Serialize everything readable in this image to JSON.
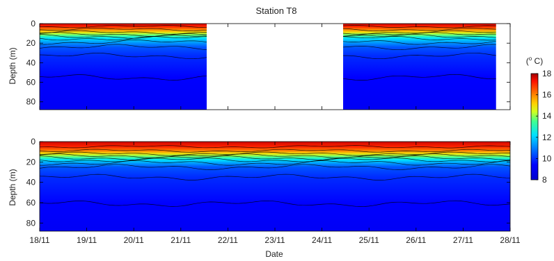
{
  "chart_data": {
    "type": "heatmap",
    "title": "Station T8",
    "xlabel": "Date",
    "ylabel": "Depth (m)",
    "x_ticks": [
      "18/11",
      "19/11",
      "20/11",
      "21/11",
      "22/11",
      "23/11",
      "24/11",
      "25/11",
      "26/11",
      "27/11",
      "28/11"
    ],
    "xlim_days": [
      18,
      28
    ],
    "y_ticks": [
      0,
      20,
      40,
      60,
      80
    ],
    "ylim": [
      0,
      88
    ],
    "y_reversed": true,
    "colorbar": {
      "label": "(° C)",
      "ticks": [
        8,
        10,
        12,
        14,
        16,
        18
      ],
      "range": [
        8,
        18
      ],
      "colormap": "jet"
    },
    "panels": [
      {
        "name": "top",
        "data_gap_days": [
          21.55,
          24.45
        ],
        "isotherm_depths_m": [
          {
            "temp": 17,
            "depth": 3
          },
          {
            "temp": 16,
            "depth": 6
          },
          {
            "temp": 15,
            "depth": 9
          },
          {
            "temp": 14,
            "depth": 11
          },
          {
            "temp": 13,
            "depth": 13
          },
          {
            "temp": 12,
            "depth": 15
          },
          {
            "temp": 11,
            "depth": 19
          },
          {
            "temp": 10,
            "depth": 24
          },
          {
            "temp": 9.5,
            "depth": 33
          },
          {
            "temp": 9,
            "depth": 55
          }
        ]
      },
      {
        "name": "bottom",
        "data_gap_days": null,
        "isotherm_depths_m": [
          {
            "temp": 17,
            "depth": 5
          },
          {
            "temp": 16,
            "depth": 9
          },
          {
            "temp": 15,
            "depth": 12
          },
          {
            "temp": 14,
            "depth": 14
          },
          {
            "temp": 13,
            "depth": 16
          },
          {
            "temp": 12,
            "depth": 18
          },
          {
            "temp": 11,
            "depth": 21
          },
          {
            "temp": 10,
            "depth": 25
          },
          {
            "temp": 9.5,
            "depth": 35
          },
          {
            "temp": 9,
            "depth": 61
          }
        ]
      }
    ]
  }
}
